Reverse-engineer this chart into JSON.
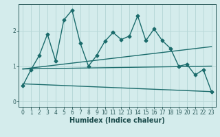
{
  "title": "",
  "xlabel": "Humidex (Indice chaleur)",
  "bg_color": "#d4ecec",
  "grid_color": "#b8d8d8",
  "line_color": "#1a6b6b",
  "xlim": [
    -0.5,
    23.5
  ],
  "ylim": [
    -0.15,
    2.75
  ],
  "yticks": [
    0,
    1,
    2
  ],
  "xticks": [
    0,
    1,
    2,
    3,
    4,
    5,
    6,
    7,
    8,
    9,
    10,
    11,
    12,
    13,
    14,
    15,
    16,
    17,
    18,
    19,
    20,
    21,
    22,
    23
  ],
  "jagged_x": [
    0,
    1,
    2,
    3,
    4,
    5,
    6,
    7,
    8,
    9,
    10,
    11,
    12,
    13,
    14,
    15,
    16,
    17,
    18,
    19,
    20,
    21,
    22,
    23
  ],
  "jagged_y": [
    0.45,
    0.9,
    1.3,
    1.9,
    1.15,
    2.3,
    2.58,
    1.65,
    1.0,
    1.3,
    1.7,
    1.95,
    1.75,
    1.85,
    2.42,
    1.72,
    2.05,
    1.72,
    1.5,
    1.0,
    1.05,
    0.75,
    0.9,
    0.28
  ],
  "line1_x": [
    0,
    23
  ],
  "line1_y": [
    0.92,
    1.55
  ],
  "line2_x": [
    0,
    23
  ],
  "line2_y": [
    0.92,
    1.0
  ],
  "line3_x": [
    0,
    23
  ],
  "line3_y": [
    0.5,
    0.28
  ],
  "marker": "D",
  "marker_size": 2.5,
  "line_width": 1.0
}
